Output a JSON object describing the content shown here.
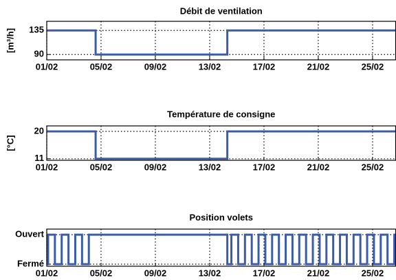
{
  "chart_data": [
    {
      "type": "line",
      "title": "Débit de ventilation",
      "ylabel": "[m³/h]",
      "xlim": [
        1,
        26.7
      ],
      "ylim": [
        80,
        152
      ],
      "xticks": [
        {
          "value": 1,
          "label": "01/02"
        },
        {
          "value": 5,
          "label": "05/02"
        },
        {
          "value": 9,
          "label": "09/02"
        },
        {
          "value": 13,
          "label": "13/02"
        },
        {
          "value": 17,
          "label": "17/02"
        },
        {
          "value": 21,
          "label": "21/02"
        },
        {
          "value": 25,
          "label": "25/02"
        }
      ],
      "yticks": [
        90,
        135
      ],
      "grid": true,
      "series": [
        {
          "color": "#3b5ca8",
          "x": [
            1,
            4.6,
            4.6,
            14.3,
            14.3,
            26.7
          ],
          "values": [
            135,
            135,
            90,
            90,
            135,
            135
          ]
        }
      ]
    },
    {
      "type": "line",
      "title": "Température de consigne",
      "ylabel": "[°C]",
      "xlim": [
        1,
        26.7
      ],
      "ylim": [
        10.5,
        21.8
      ],
      "xticks": [
        {
          "value": 1,
          "label": "01/02"
        },
        {
          "value": 5,
          "label": "05/02"
        },
        {
          "value": 9,
          "label": "09/02"
        },
        {
          "value": 13,
          "label": "13/02"
        },
        {
          "value": 17,
          "label": "17/02"
        },
        {
          "value": 21,
          "label": "21/02"
        },
        {
          "value": 25,
          "label": "25/02"
        }
      ],
      "yticks": [
        11,
        20
      ],
      "grid": true,
      "series": [
        {
          "color": "#3b5ca8",
          "x": [
            1,
            4.6,
            4.6,
            14.3,
            14.3,
            26.7
          ],
          "values": [
            20,
            20,
            11,
            11,
            20,
            20
          ]
        }
      ]
    },
    {
      "type": "line",
      "title": "Position volets",
      "xlim": [
        1,
        26.7
      ],
      "ylim": [
        -0.07,
        1.19
      ],
      "xticks": [
        {
          "value": 1,
          "label": "01/02"
        },
        {
          "value": 5,
          "label": "05/02"
        },
        {
          "value": 9,
          "label": "09/02"
        },
        {
          "value": 13,
          "label": "13/02"
        },
        {
          "value": 17,
          "label": "17/02"
        },
        {
          "value": 21,
          "label": "21/02"
        },
        {
          "value": 25,
          "label": "25/02"
        }
      ],
      "yticks": [
        {
          "value": 0,
          "label": "Fermé"
        },
        {
          "value": 1,
          "label": "Ouvert"
        }
      ],
      "grid": true,
      "series": [
        {
          "color": "#3b5ca8",
          "x": [
            1,
            1.1,
            1.1,
            1.6,
            1.6,
            2.1,
            2.1,
            2.6,
            2.6,
            3.1,
            3.1,
            3.6,
            3.6,
            4.1,
            4.1,
            14.3,
            14.3,
            14.6,
            14.6,
            15.1,
            15.1,
            15.6,
            15.6,
            16.1,
            16.1,
            16.6,
            16.6,
            17.1,
            17.1,
            17.6,
            17.6,
            18.1,
            18.1,
            18.6,
            18.6,
            19.1,
            19.1,
            19.6,
            19.6,
            20.1,
            20.1,
            20.6,
            20.6,
            21.1,
            21.1,
            21.6,
            21.6,
            22.1,
            22.1,
            22.6,
            22.6,
            23.1,
            23.1,
            23.6,
            23.6,
            24.1,
            24.1,
            24.6,
            24.6,
            25.1,
            25.1,
            25.6,
            25.6,
            26.1,
            26.1,
            26.6,
            26.6,
            26.7
          ],
          "values": [
            0,
            0,
            1,
            1,
            0,
            0,
            1,
            1,
            0,
            0,
            1,
            1,
            0,
            0,
            1,
            1,
            0,
            0,
            1,
            1,
            0,
            0,
            1,
            1,
            0,
            0,
            1,
            1,
            0,
            0,
            1,
            1,
            0,
            0,
            1,
            1,
            0,
            0,
            1,
            1,
            0,
            0,
            1,
            1,
            0,
            0,
            1,
            1,
            0,
            0,
            1,
            1,
            0,
            0,
            1,
            1,
            0,
            0,
            1,
            1,
            0,
            0,
            1,
            1,
            0,
            0,
            1,
            1
          ]
        }
      ]
    }
  ]
}
